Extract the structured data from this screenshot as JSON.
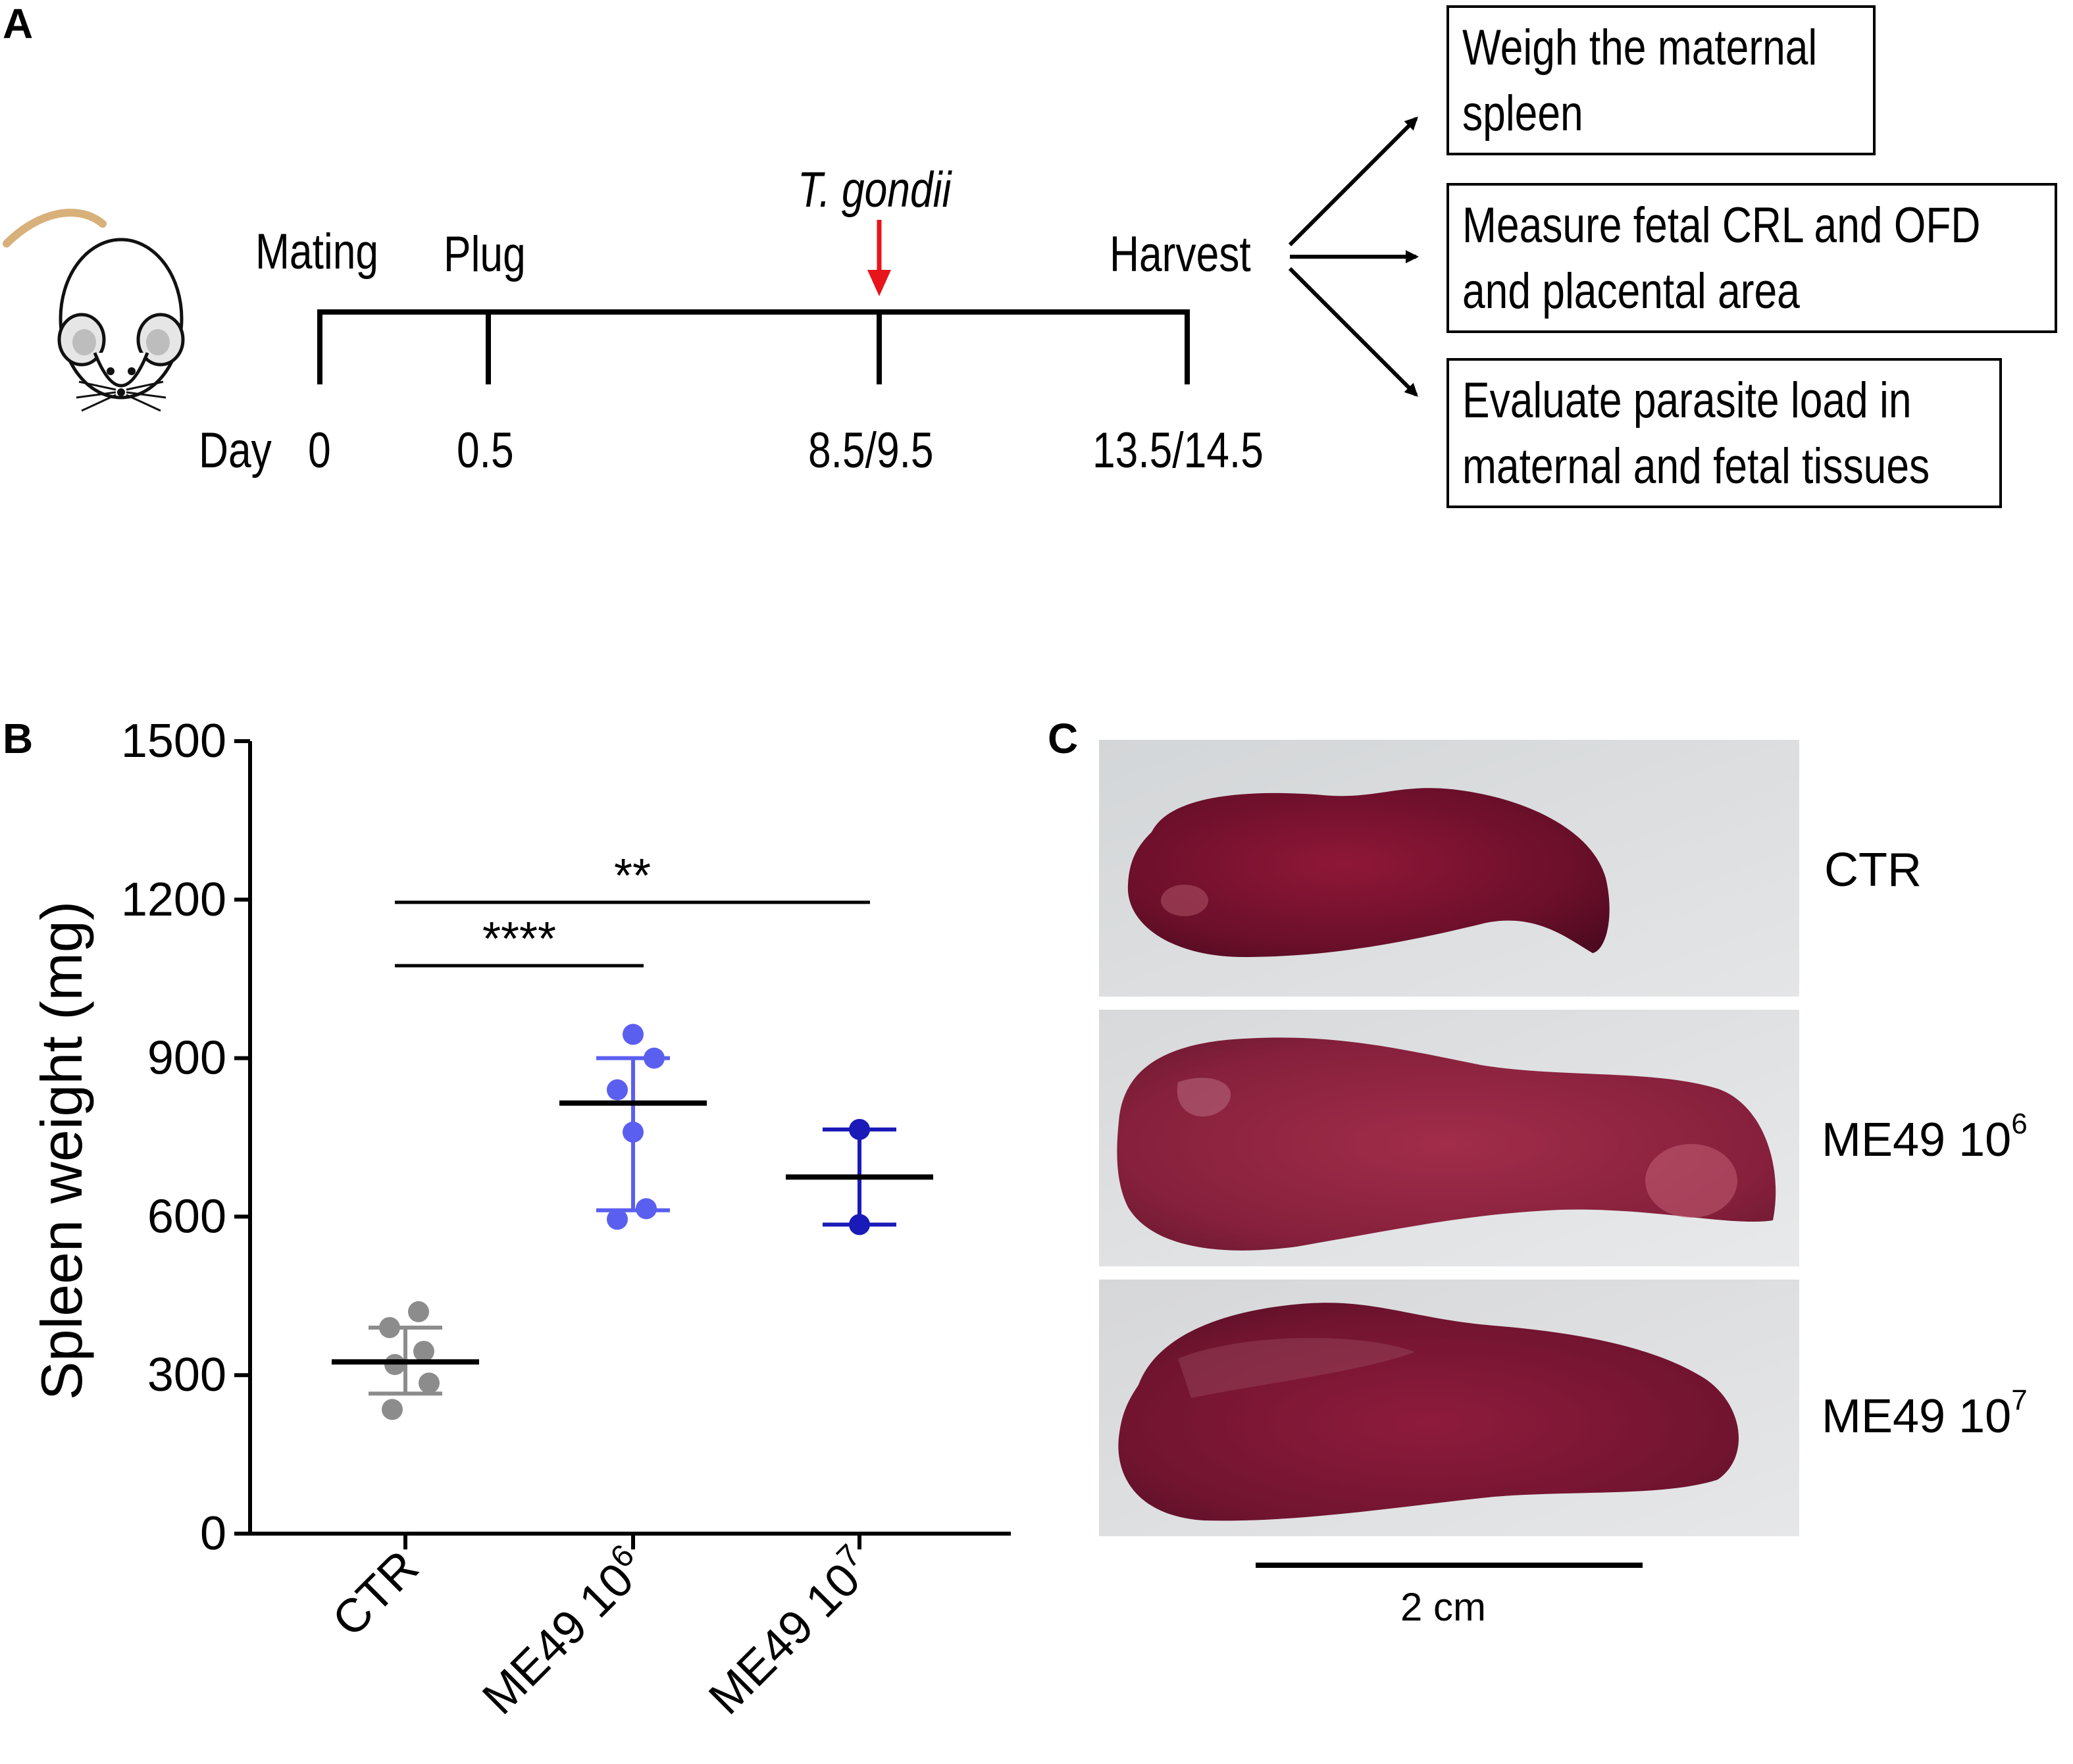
{
  "panels": {
    "a": "A",
    "b": "B",
    "c": "C"
  },
  "timeline": {
    "events": [
      "Mating",
      "Plug",
      "Harvest"
    ],
    "infection": "T. gondii",
    "day_label": "Day",
    "days": [
      "0",
      "0.5",
      "8.5/9.5",
      "13.5/14.5"
    ],
    "infection_arrow_color": "#e8141b",
    "icon": "mouse-icon"
  },
  "outcomes": [
    {
      "lines": [
        "Weigh the maternal",
        "spleen"
      ]
    },
    {
      "lines": [
        "Measure fetal CRL and OFD",
        "and placental area"
      ]
    },
    {
      "lines": [
        "Evaluate parasite load in",
        "maternal and fetal tissues"
      ]
    }
  ],
  "chart_data": {
    "type": "scatter",
    "ylabel": "Spleen weight (mg)",
    "xlabel": "",
    "ylim": [
      0,
      1500
    ],
    "yticks": [
      "0",
      "300",
      "600",
      "900",
      "1200",
      "1500"
    ],
    "categories": [
      {
        "base": "CTR",
        "exp": ""
      },
      {
        "base": "ME49 10",
        "exp": "6"
      },
      {
        "base": "ME49 10",
        "exp": "7"
      }
    ],
    "series": [
      {
        "color": "#8c8c8c",
        "points": [
          420,
          390,
          345,
          320,
          285,
          235
        ],
        "mean": 325,
        "sd_low": 265,
        "sd_high": 390
      },
      {
        "color": "#5b5ff0",
        "points": [
          945,
          900,
          840,
          760,
          615,
          595
        ],
        "mean": 815,
        "sd_low": 612,
        "sd_high": 900
      },
      {
        "color": "#1a1ab8",
        "points": [
          765,
          585
        ],
        "mean": 675,
        "sd_low": 585,
        "sd_high": 765
      }
    ],
    "significance": [
      {
        "label": "****",
        "from": 0,
        "to": 1,
        "y": 1075
      },
      {
        "label": "**",
        "from": 0,
        "to": 2,
        "y": 1195
      }
    ]
  },
  "photos": {
    "labels": [
      {
        "base": "CTR",
        "exp": ""
      },
      {
        "base": "ME49 10",
        "exp": "6"
      },
      {
        "base": "ME49 10",
        "exp": "7"
      }
    ],
    "scale_bar": "2 cm"
  }
}
